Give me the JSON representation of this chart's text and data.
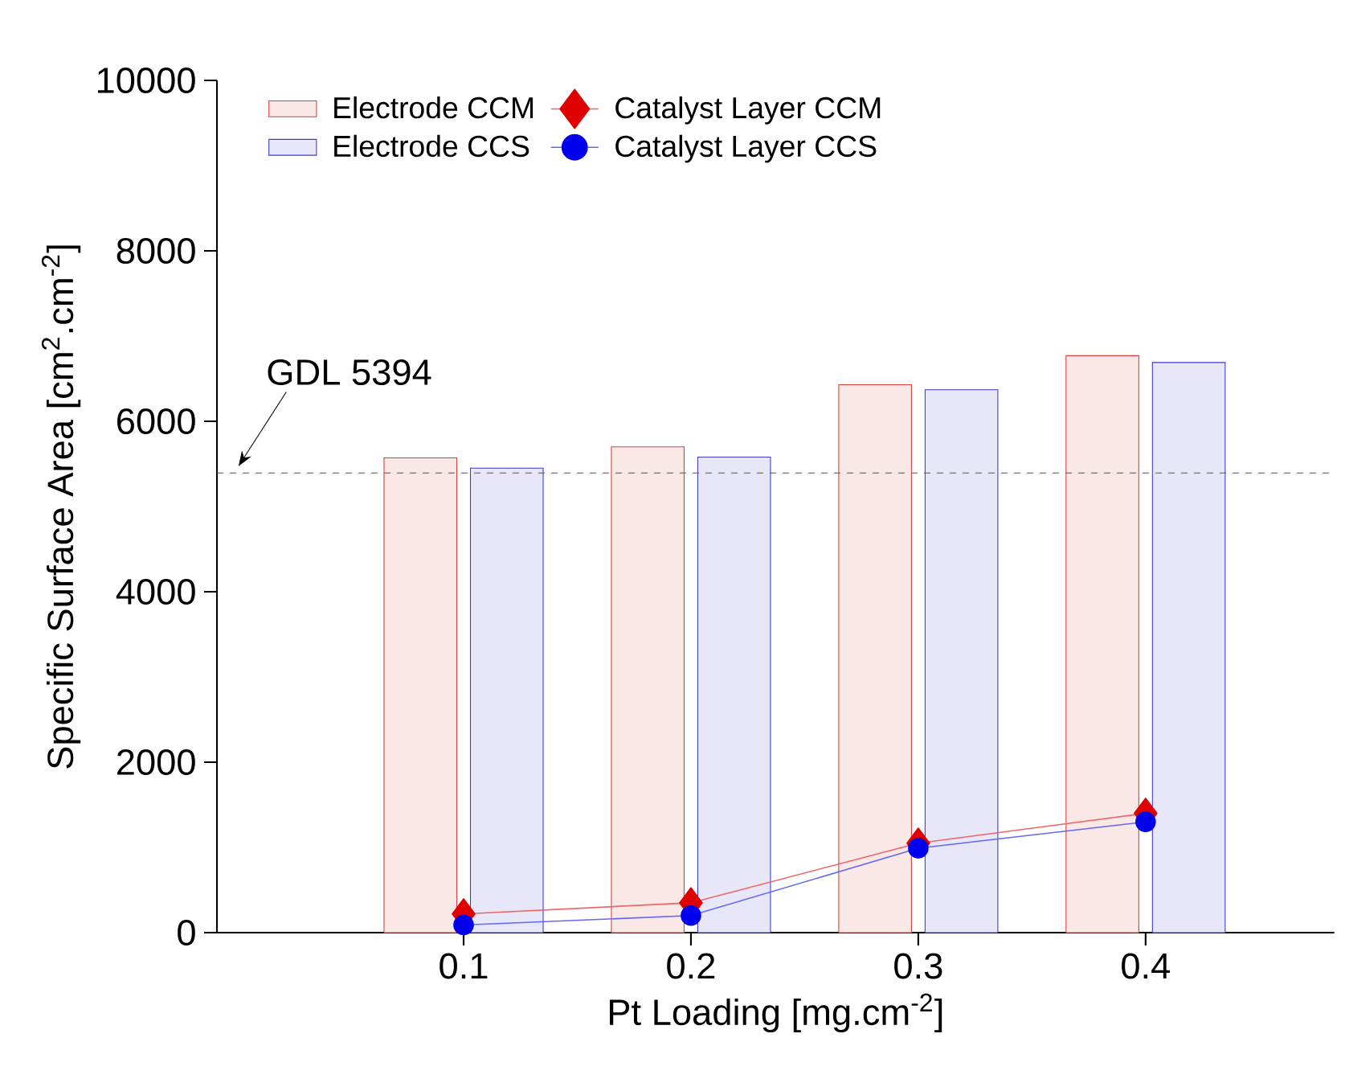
{
  "chart_data": {
    "type": "bar",
    "xlabel": "Pt Loading [mg.cm$^{-2}$]",
    "ylabel": "Specific Surface Area [cm$^{2}$.cm$^{-2}$]",
    "categories": [
      "0.1",
      "0.2",
      "0.3",
      "0.4"
    ],
    "series": [
      {
        "name": "Electrode CCM",
        "color": "#d9403a",
        "values": [
          5570,
          5700,
          6430,
          6770
        ]
      },
      {
        "name": "Electrode CCS",
        "color": "#3a3ad0",
        "values": [
          5450,
          5580,
          6370,
          6690
        ]
      },
      {
        "name": "Catalyst Layer CCM",
        "type": "line",
        "marker": "diamond",
        "color": "#e00000",
        "values": [
          220,
          350,
          1050,
          1400
        ]
      },
      {
        "name": "Catalyst Layer CCS",
        "type": "line",
        "marker": "circle",
        "color": "#0000ee",
        "values": [
          90,
          200,
          990,
          1300
        ]
      }
    ],
    "ylim": [
      0,
      10000
    ],
    "yticks": [
      0,
      2000,
      4000,
      6000,
      8000,
      10000
    ],
    "ref_lines": [
      {
        "axis": "y",
        "value": 5394,
        "label": "GDL 5394",
        "line_style": "dashed",
        "color": "#555555"
      }
    ],
    "legend": "top"
  }
}
